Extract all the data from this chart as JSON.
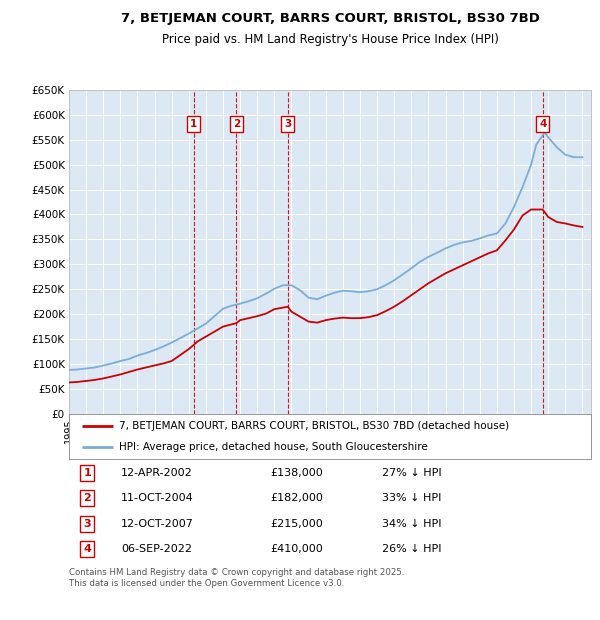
{
  "title": "7, BETJEMAN COURT, BARRS COURT, BRISTOL, BS30 7BD",
  "subtitle": "Price paid vs. HM Land Registry's House Price Index (HPI)",
  "ylim": [
    0,
    650000
  ],
  "plot_bg": "#dce9f5",
  "sales": [
    {
      "label": "1",
      "date": "12-APR-2002",
      "price": 138000,
      "year": 2002.28,
      "pct": "27% ↓ HPI"
    },
    {
      "label": "2",
      "date": "11-OCT-2004",
      "price": 182000,
      "year": 2004.78,
      "pct": "33% ↓ HPI"
    },
    {
      "label": "3",
      "date": "12-OCT-2007",
      "price": 215000,
      "year": 2007.78,
      "pct": "34% ↓ HPI"
    },
    {
      "label": "4",
      "date": "06-SEP-2022",
      "price": 410000,
      "year": 2022.68,
      "pct": "26% ↓ HPI"
    }
  ],
  "hpi_years": [
    1995,
    1995.5,
    1996,
    1996.5,
    1997,
    1997.5,
    1998,
    1998.5,
    1999,
    1999.5,
    2000,
    2000.5,
    2001,
    2001.5,
    2002,
    2002.5,
    2003,
    2003.5,
    2004,
    2004.5,
    2005,
    2005.5,
    2006,
    2006.5,
    2007,
    2007.5,
    2008,
    2008.5,
    2009,
    2009.5,
    2010,
    2010.5,
    2011,
    2011.5,
    2012,
    2012.5,
    2013,
    2013.5,
    2014,
    2014.5,
    2015,
    2015.5,
    2016,
    2016.5,
    2017,
    2017.5,
    2018,
    2018.5,
    2019,
    2019.5,
    2020,
    2020.5,
    2021,
    2021.5,
    2022,
    2022.3,
    2022.8,
    2023,
    2023.5,
    2024,
    2024.5,
    2025
  ],
  "hpi_values": [
    88000,
    89000,
    91000,
    93000,
    97000,
    101000,
    106000,
    110000,
    117000,
    122000,
    128000,
    135000,
    143000,
    152000,
    161000,
    171000,
    181000,
    196000,
    211000,
    217000,
    221000,
    226000,
    232000,
    241000,
    251000,
    258000,
    258000,
    248000,
    233000,
    230000,
    237000,
    243000,
    247000,
    246000,
    244000,
    246000,
    250000,
    258000,
    268000,
    280000,
    292000,
    305000,
    315000,
    323000,
    332000,
    339000,
    344000,
    347000,
    352000,
    358000,
    362000,
    382000,
    415000,
    455000,
    500000,
    540000,
    565000,
    555000,
    535000,
    520000,
    515000,
    515000
  ],
  "price_years": [
    1995,
    1995.5,
    1996,
    1996.5,
    1997,
    1997.5,
    1998,
    1998.5,
    1999,
    1999.5,
    2000,
    2000.5,
    2001,
    2001.5,
    2002,
    2002.28,
    2002.5,
    2003,
    2003.5,
    2004,
    2004.78,
    2005,
    2005.5,
    2006,
    2006.5,
    2007,
    2007.78,
    2008,
    2008.5,
    2009,
    2009.5,
    2010,
    2010.5,
    2011,
    2011.5,
    2012,
    2012.5,
    2013,
    2013.5,
    2014,
    2014.5,
    2015,
    2015.5,
    2016,
    2016.5,
    2017,
    2017.5,
    2018,
    2018.5,
    2019,
    2019.5,
    2020,
    2020.5,
    2021,
    2021.5,
    2022,
    2022.68,
    2023,
    2023.5,
    2024,
    2024.5,
    2025
  ],
  "price_values": [
    63000,
    64000,
    66000,
    68000,
    71000,
    75000,
    79000,
    84000,
    89000,
    93000,
    97000,
    101000,
    106000,
    118000,
    130000,
    138000,
    145000,
    155000,
    165000,
    175000,
    182000,
    188000,
    192000,
    196000,
    201000,
    210000,
    215000,
    205000,
    195000,
    185000,
    183000,
    188000,
    191000,
    193000,
    192000,
    192000,
    194000,
    198000,
    206000,
    215000,
    226000,
    238000,
    250000,
    262000,
    272000,
    282000,
    290000,
    298000,
    306000,
    314000,
    322000,
    328000,
    348000,
    370000,
    398000,
    410000,
    410000,
    395000,
    385000,
    382000,
    378000,
    375000
  ],
  "red_color": "#cc0000",
  "blue_color": "#7dadd4",
  "legend_line1": "7, BETJEMAN COURT, BARRS COURT, BRISTOL, BS30 7BD (detached house)",
  "legend_line2": "HPI: Average price, detached house, South Gloucestershire",
  "footer": "Contains HM Land Registry data © Crown copyright and database right 2025.\nThis data is licensed under the Open Government Licence v3.0."
}
